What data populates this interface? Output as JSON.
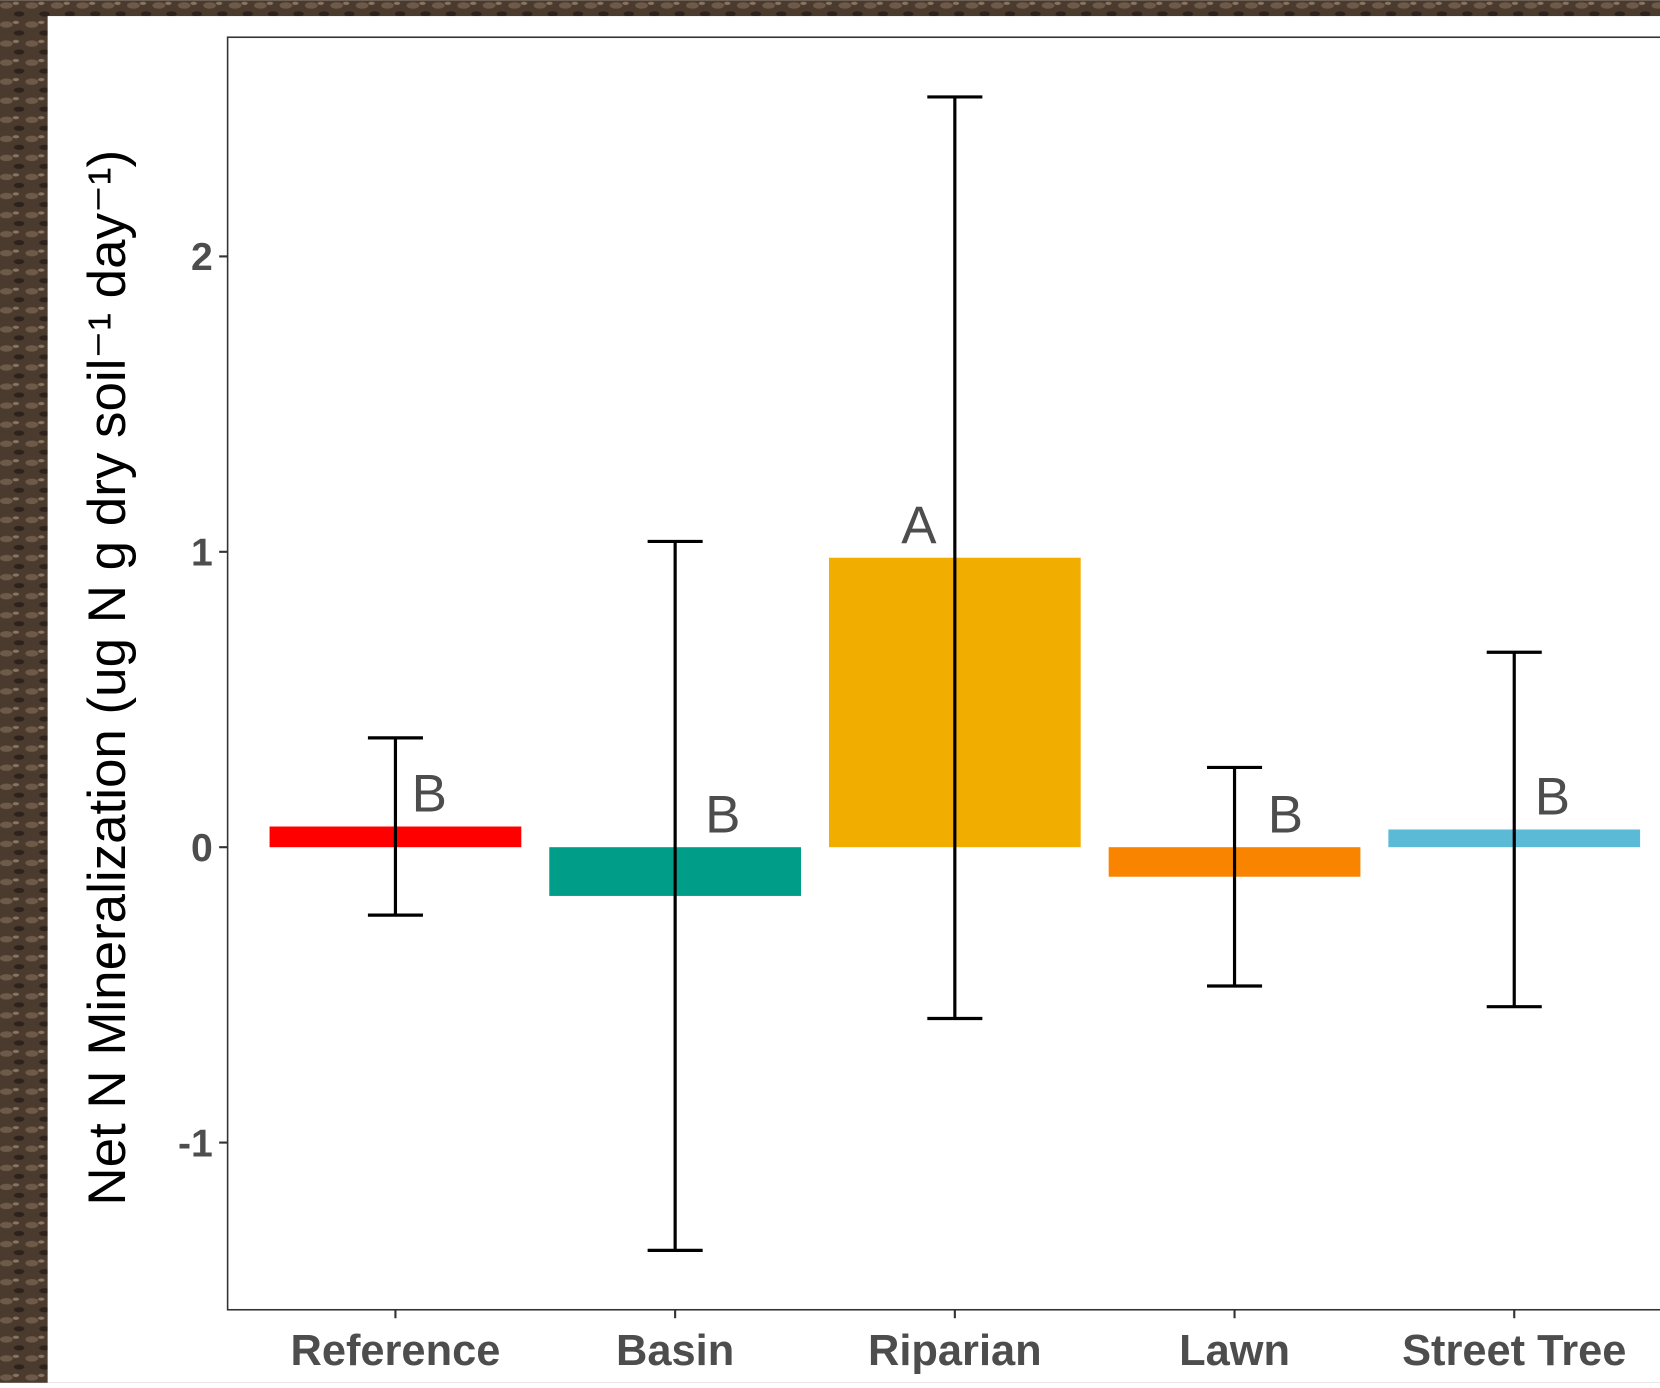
{
  "chart_data": {
    "type": "bar",
    "y_label": "Net N Mineralization (ug N g dry soil⁻¹ day⁻¹)",
    "categories": [
      "Reference",
      "Basin",
      "Riparian",
      "Lawn",
      "Street Tree"
    ],
    "values": [
      0.07,
      -0.165,
      0.98,
      -0.1,
      0.06
    ],
    "errors": [
      0.3,
      1.2,
      1.56,
      0.37,
      0.6
    ],
    "letters": [
      "B",
      "B",
      "A",
      "B",
      "B"
    ],
    "colors": [
      "#ff0000",
      "#009e89",
      "#f2ae00",
      "#f98400",
      "#5bbad5"
    ],
    "ylim": [
      -1.566,
      2.742
    ],
    "yticks": [
      -1,
      0,
      1,
      2
    ],
    "grid": false
  }
}
